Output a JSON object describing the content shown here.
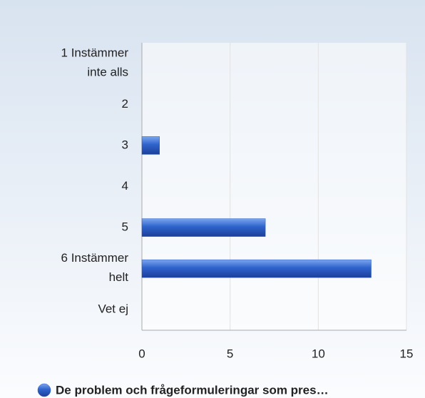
{
  "chart_data": {
    "type": "bar",
    "orientation": "horizontal",
    "categories": [
      "1 Instämmer\ninte alls",
      "2",
      "3",
      "4",
      "5",
      "6 Instämmer\nhelt",
      "Vet ej"
    ],
    "series": [
      {
        "name": "De problem och frågeformuleringar som pres…",
        "color": "#2a5cc4",
        "values": [
          0,
          0,
          1,
          0,
          7,
          13,
          0
        ]
      }
    ],
    "xlim": [
      0,
      15
    ],
    "xticks": [
      0,
      5,
      10,
      15
    ],
    "grid": true,
    "legend": "bottom"
  }
}
